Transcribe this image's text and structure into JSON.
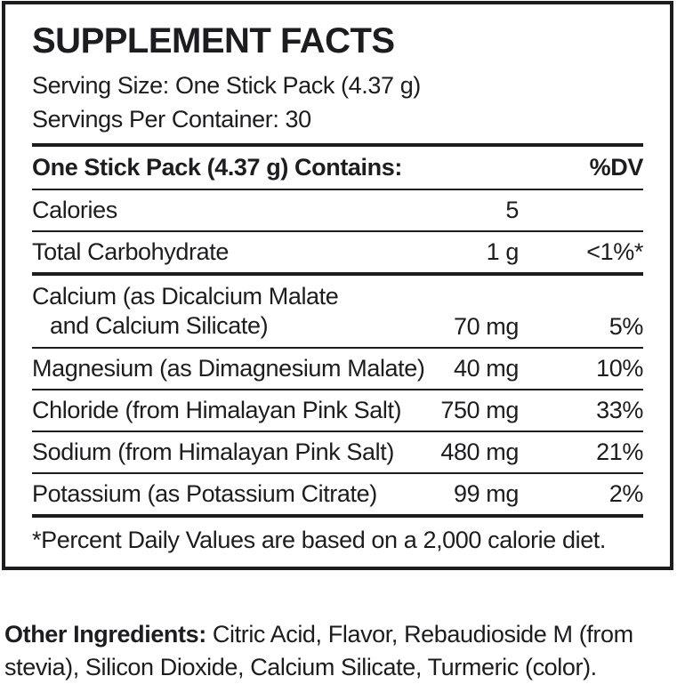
{
  "panel": {
    "title": "SUPPLEMENT FACTS",
    "serving_size": "Serving Size: One Stick Pack (4.37 g)",
    "servings_per_container": "Servings Per Container: 30",
    "header": {
      "contains_label": "One Stick Pack (4.37 g) Contains:",
      "dv_label": "%DV"
    },
    "rows": [
      {
        "label": "Calories",
        "amount": "5",
        "dv": ""
      },
      {
        "label": "Total Carbohydrate",
        "amount": "1 g",
        "dv": "<1%*"
      },
      {
        "label_line1": "Calcium (as Dicalcium Malate",
        "label_line2": "and Calcium Silicate)",
        "amount": "70 mg",
        "dv": "5%"
      },
      {
        "label": "Magnesium (as Dimagnesium Malate)",
        "amount": "40 mg",
        "dv": "10%"
      },
      {
        "label": "Chloride (from Himalayan Pink Salt)",
        "amount": "750 mg",
        "dv": "33%"
      },
      {
        "label": "Sodium (from Himalayan Pink Salt)",
        "amount": "480 mg",
        "dv": "21%"
      },
      {
        "label": "Potassium (as Potassium Citrate)",
        "amount": "99 mg",
        "dv": "2%"
      }
    ],
    "footnote": "*Percent Daily Values are based on a 2,000 calorie diet."
  },
  "other_ingredients": {
    "label": "Other Ingredients:",
    "line1_rest": " Citric Acid, Flavor, Rebaudioside M (from",
    "line2": "stevia), Silicon Dioxide, Calcium Silicate, Turmeric (color)."
  },
  "colors": {
    "text": "#1d1d1f",
    "background": "#ffffff"
  }
}
